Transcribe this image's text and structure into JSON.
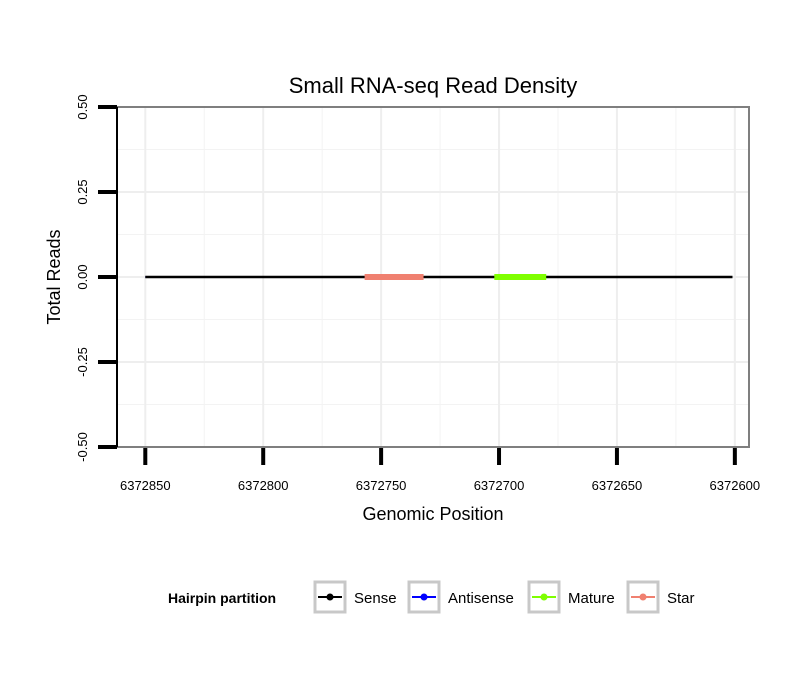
{
  "chart_data": {
    "type": "line",
    "title": "Small RNA-seq Read Density",
    "xlabel": "Genomic Position",
    "ylabel": "Total Reads",
    "x_reversed": true,
    "xlim": [
      6372862,
      6372594
    ],
    "ylim": [
      -0.5,
      0.5
    ],
    "x_ticks": [
      6372850,
      6372800,
      6372750,
      6372700,
      6372650,
      6372600
    ],
    "x_tick_labels": [
      "6372850",
      "6372800",
      "6372750",
      "6372700",
      "6372650",
      "6372600"
    ],
    "y_ticks": [
      0.5,
      0.25,
      0,
      -0.25,
      -0.5
    ],
    "y_tick_labels": [
      "0.50",
      "0.25",
      "0.00",
      "-0.25",
      "-0.50"
    ],
    "grid": true,
    "series": [
      {
        "name": "Sense",
        "color": "#000000",
        "x": [
          6372850,
          6372601
        ],
        "y": [
          0,
          0
        ]
      },
      {
        "name": "Antisense",
        "color": "#0000ff",
        "x": [
          6372850,
          6372601
        ],
        "y": [
          0,
          0
        ]
      },
      {
        "name": "Mature",
        "color": "#7fff00",
        "x": [
          6372702,
          6372680
        ],
        "y": [
          0,
          0
        ]
      },
      {
        "name": "Star",
        "color": "#f08070",
        "x": [
          6372757,
          6372732
        ],
        "y": [
          0,
          0
        ]
      }
    ],
    "legend": {
      "title": "Hairpin partition",
      "position": "bottom",
      "items": [
        {
          "label": "Sense",
          "color": "#000000"
        },
        {
          "label": "Antisense",
          "color": "#0000ff"
        },
        {
          "label": "Mature",
          "color": "#7fff00"
        },
        {
          "label": "Star",
          "color": "#f08070"
        }
      ]
    }
  }
}
